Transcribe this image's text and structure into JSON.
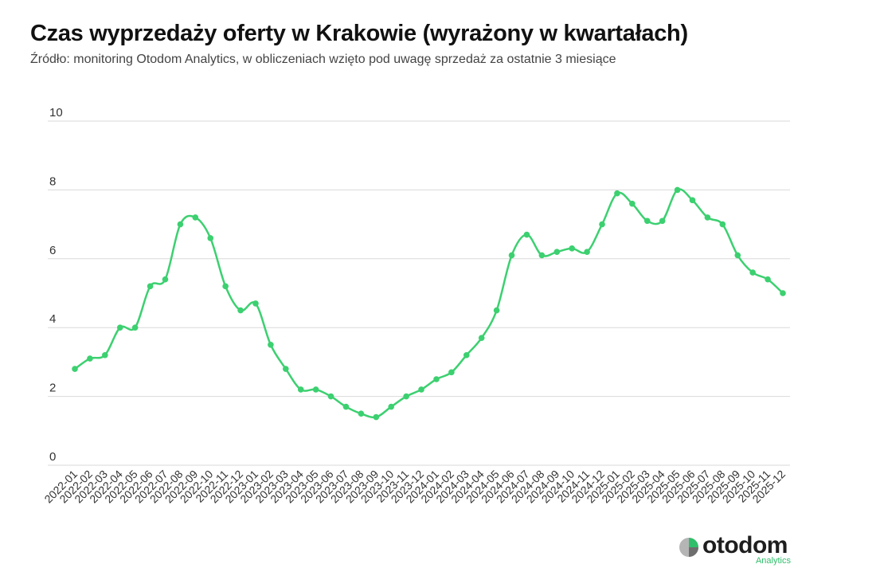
{
  "header": {
    "title": "Czas wyprzedaży oferty w Krakowie (wyrażony w kwartałach)",
    "subtitle": "Źródło: monitoring Otodom Analytics, w obliczeniach wzięto pod uwagę sprzedaż za ostatnie 3 miesiące"
  },
  "logo": {
    "brand": "otodom",
    "tagline": "Analytics",
    "icon": "otodom-logo-icon"
  },
  "colors": {
    "line": "#3cd070",
    "grid": "#d9d9d9",
    "tick_text": "#333333"
  },
  "chart_data": {
    "type": "line",
    "title": "Czas wyprzedaży oferty w Krakowie (wyrażony w kwartałach)",
    "subtitle": "Źródło: monitoring Otodom Analytics, w obliczeniach wzięto pod uwagę sprzedaż za ostatnie 3 miesiące",
    "xlabel": "",
    "ylabel": "",
    "ylim": [
      0,
      10
    ],
    "yticks": [
      0,
      2,
      4,
      6,
      8,
      10
    ],
    "grid": true,
    "legend": "none",
    "categories": [
      "2022-01",
      "2022-02",
      "2022-03",
      "2022-04",
      "2022-05",
      "2022-06",
      "2022-07",
      "2022-08",
      "2022-09",
      "2022-10",
      "2022-11",
      "2022-12",
      "2023-01",
      "2023-02",
      "2023-03",
      "2023-04",
      "2023-05",
      "2023-06",
      "2023-07",
      "2023-08",
      "2023-09",
      "2023-10",
      "2023-11",
      "2023-12",
      "2024-01",
      "2024-02",
      "2024-03",
      "2024-04",
      "2024-05",
      "2024-06",
      "2024-07",
      "2024-08",
      "2024-09",
      "2024-10",
      "2024-11",
      "2024-12",
      "2025-01",
      "2025-02",
      "2025-03",
      "2025-04",
      "2025-05",
      "2025-06",
      "2025-07",
      "2025-08",
      "2025-09",
      "2025-10",
      "2025-11",
      "2025-12"
    ],
    "series": [
      {
        "values": [
          2.8,
          3.1,
          3.2,
          4.0,
          4.0,
          5.2,
          5.4,
          7.0,
          7.2,
          6.6,
          5.2,
          4.5,
          4.7,
          3.5,
          2.8,
          2.2,
          2.2,
          2.0,
          1.7,
          1.5,
          1.4,
          1.7,
          2.0,
          2.2,
          2.5,
          2.7,
          3.2,
          3.7,
          4.5,
          6.1,
          6.7,
          6.1,
          6.2,
          6.3,
          6.2,
          7.0,
          7.9,
          7.6,
          7.1,
          7.1,
          8.0,
          7.7,
          7.2,
          7.0,
          6.1,
          5.6,
          5.4,
          5.0
        ]
      }
    ]
  }
}
